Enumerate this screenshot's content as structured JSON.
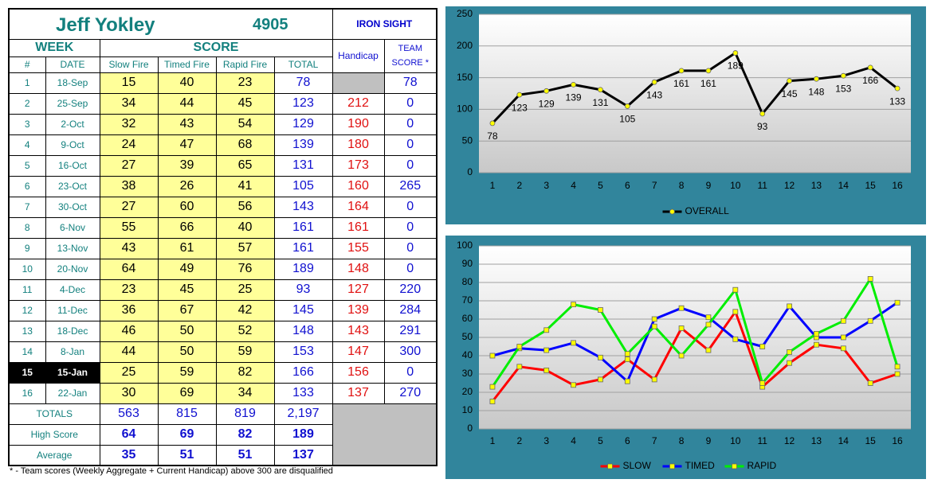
{
  "header": {
    "name": "Jeff Yokley",
    "id": "4905",
    "class": "IRON SIGHT"
  },
  "table": {
    "group_headers": [
      "WEEK",
      "SCORE"
    ],
    "columns": [
      "#",
      "DATE",
      "Slow Fire",
      "Timed Fire",
      "Rapid Fire",
      "TOTAL",
      "Handicap",
      "TEAM SCORE *"
    ],
    "current_week": 15,
    "rows": [
      [
        1,
        "18-Sep",
        15,
        40,
        23,
        78,
        null,
        78
      ],
      [
        2,
        "25-Sep",
        34,
        44,
        45,
        123,
        212,
        0
      ],
      [
        3,
        "2-Oct",
        32,
        43,
        54,
        129,
        190,
        0
      ],
      [
        4,
        "9-Oct",
        24,
        47,
        68,
        139,
        180,
        0
      ],
      [
        5,
        "16-Oct",
        27,
        39,
        65,
        131,
        173,
        0
      ],
      [
        6,
        "23-Oct",
        38,
        26,
        41,
        105,
        160,
        265
      ],
      [
        7,
        "30-Oct",
        27,
        60,
        56,
        143,
        164,
        0
      ],
      [
        8,
        "6-Nov",
        55,
        66,
        40,
        161,
        161,
        0
      ],
      [
        9,
        "13-Nov",
        43,
        61,
        57,
        161,
        155,
        0
      ],
      [
        10,
        "20-Nov",
        64,
        49,
        76,
        189,
        148,
        0
      ],
      [
        11,
        "4-Dec",
        23,
        45,
        25,
        93,
        127,
        220
      ],
      [
        12,
        "11-Dec",
        36,
        67,
        42,
        145,
        139,
        284
      ],
      [
        13,
        "18-Dec",
        46,
        50,
        52,
        148,
        143,
        291
      ],
      [
        14,
        "8-Jan",
        44,
        50,
        59,
        153,
        147,
        300
      ],
      [
        15,
        "15-Jan",
        25,
        59,
        82,
        166,
        156,
        0
      ],
      [
        16,
        "22-Jan",
        30,
        69,
        34,
        133,
        137,
        270
      ]
    ],
    "summary": [
      {
        "label": "TOTALS",
        "values": [
          563,
          815,
          819,
          "2,197"
        ]
      },
      {
        "label": "High Score",
        "values": [
          64,
          69,
          82,
          189
        ]
      },
      {
        "label": "Average",
        "values": [
          35,
          51,
          51,
          137
        ]
      }
    ]
  },
  "footnote": "* - Team scores (Weekly Aggregate + Current Handicap) above 300 are disqualified",
  "chart_data": [
    {
      "type": "line",
      "categories": [
        "1",
        "2",
        "3",
        "4",
        "5",
        "6",
        "7",
        "8",
        "9",
        "10",
        "11",
        "12",
        "13",
        "14",
        "15",
        "16"
      ],
      "series": [
        {
          "name": "OVERALL",
          "color": "#000000",
          "values": [
            78,
            123,
            129,
            139,
            131,
            105,
            143,
            161,
            161,
            189,
            93,
            145,
            148,
            153,
            166,
            133
          ]
        }
      ],
      "ylim": [
        0,
        250
      ],
      "yticks": [
        0,
        50,
        100,
        150,
        200,
        250
      ],
      "grid": true,
      "data_labels": true,
      "marker": "circle",
      "marker_color": "#ffff00",
      "legend": "bottom"
    },
    {
      "type": "line",
      "categories": [
        "1",
        "2",
        "3",
        "4",
        "5",
        "6",
        "7",
        "8",
        "9",
        "10",
        "11",
        "12",
        "13",
        "14",
        "15",
        "16"
      ],
      "series": [
        {
          "name": "SLOW",
          "color": "#ff0000",
          "values": [
            15,
            34,
            32,
            24,
            27,
            38,
            27,
            55,
            43,
            64,
            23,
            36,
            46,
            44,
            25,
            30
          ]
        },
        {
          "name": "TIMED",
          "color": "#0000ff",
          "values": [
            40,
            44,
            43,
            47,
            39,
            26,
            60,
            66,
            61,
            49,
            45,
            67,
            50,
            50,
            59,
            69
          ]
        },
        {
          "name": "RAPID",
          "color": "#00ee00",
          "values": [
            23,
            45,
            54,
            68,
            65,
            41,
            56,
            40,
            57,
            76,
            25,
            42,
            52,
            59,
            82,
            34
          ]
        }
      ],
      "ylim": [
        0,
        100
      ],
      "yticks": [
        0,
        10,
        20,
        30,
        40,
        50,
        60,
        70,
        80,
        90,
        100
      ],
      "grid": true,
      "data_labels": false,
      "marker": "square",
      "marker_color": "#ffff00",
      "legend": "bottom"
    }
  ]
}
